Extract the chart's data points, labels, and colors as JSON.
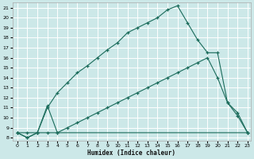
{
  "xlabel": "Humidex (Indice chaleur)",
  "background_color": "#cce8e8",
  "grid_color": "#ffffff",
  "line_color": "#1a6b5a",
  "xlim": [
    -0.5,
    23.3
  ],
  "ylim": [
    7.7,
    21.5
  ],
  "yticks": [
    8,
    9,
    10,
    11,
    12,
    13,
    14,
    15,
    16,
    17,
    18,
    19,
    20,
    21
  ],
  "xticks": [
    0,
    1,
    2,
    3,
    4,
    5,
    6,
    7,
    8,
    9,
    10,
    11,
    12,
    13,
    14,
    15,
    16,
    17,
    18,
    19,
    20,
    21,
    22,
    23
  ],
  "line_top_x": [
    0,
    1,
    2,
    3,
    4,
    5,
    6,
    7,
    8,
    9,
    10,
    11,
    12,
    13,
    14,
    15,
    16,
    17,
    18,
    19,
    20,
    21,
    22,
    23
  ],
  "line_top_y": [
    8.5,
    8.0,
    8.5,
    11.0,
    12.5,
    13.5,
    14.5,
    15.2,
    16.0,
    16.8,
    17.5,
    18.5,
    19.0,
    19.5,
    20.0,
    20.8,
    21.2,
    19.5,
    17.8,
    16.5,
    16.5,
    11.5,
    10.5,
    8.5
  ],
  "line_mid_x": [
    0,
    1,
    2,
    3,
    4,
    5,
    6,
    7,
    8,
    9,
    10,
    11,
    12,
    13,
    14,
    15,
    16,
    17,
    18,
    19,
    20,
    21,
    22,
    23
  ],
  "line_mid_y": [
    8.5,
    8.5,
    8.5,
    8.5,
    8.5,
    9.0,
    9.5,
    10.0,
    10.5,
    11.0,
    11.5,
    12.0,
    12.5,
    13.0,
    13.5,
    14.0,
    14.5,
    15.0,
    15.5,
    16.0,
    14.0,
    11.5,
    10.2,
    8.5
  ],
  "line_bot_x": [
    0,
    1,
    2,
    3,
    4,
    23
  ],
  "line_bot_y": [
    8.5,
    8.0,
    8.5,
    11.2,
    8.5,
    8.5
  ]
}
